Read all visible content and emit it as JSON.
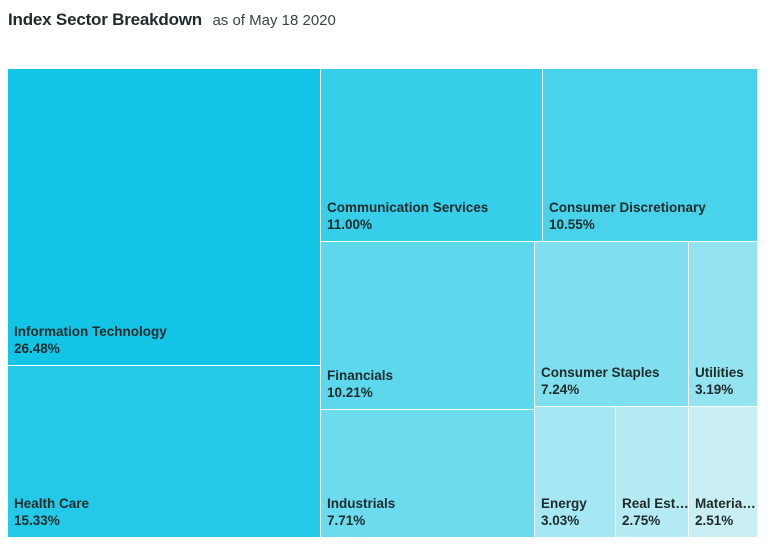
{
  "header": {
    "title": "Index Sector Breakdown",
    "subtitle": "as of May 18 2020"
  },
  "chart_data": {
    "type": "treemap",
    "title": "Index Sector Breakdown",
    "subtitle": "as of May 18 2020",
    "unit": "%",
    "items": [
      {
        "label": "Information Technology",
        "display_label": "Information Technology",
        "value": 26.48,
        "display_value": "26.48%",
        "color": "#12c4e5"
      },
      {
        "label": "Health Care",
        "display_label": "Health Care",
        "value": 15.33,
        "display_value": "15.33%",
        "color": "#24c9e8"
      },
      {
        "label": "Communication Services",
        "display_label": "Communication Services",
        "value": 11.0,
        "display_value": "11.00%",
        "color": "#36cee9"
      },
      {
        "label": "Consumer Discretionary",
        "display_label": "Consumer Discretionary",
        "value": 10.55,
        "display_value": "10.55%",
        "color": "#48d3eb"
      },
      {
        "label": "Financials",
        "display_label": "Financials",
        "value": 10.21,
        "display_value": "10.21%",
        "color": "#5cd7ec"
      },
      {
        "label": "Industrials",
        "display_label": "Industrials",
        "value": 7.71,
        "display_value": "7.71%",
        "color": "#6ddbee"
      },
      {
        "label": "Consumer Staples",
        "display_label": "Consumer Staples",
        "value": 7.24,
        "display_value": "7.24%",
        "color": "#80dfef"
      },
      {
        "label": "Utilities",
        "display_label": "Utilities",
        "value": 3.19,
        "display_value": "3.19%",
        "color": "#93e3f1"
      },
      {
        "label": "Energy",
        "display_label": "Energy",
        "value": 3.03,
        "display_value": "3.03%",
        "color": "#a5e7f3"
      },
      {
        "label": "Real Estate",
        "display_label": "Real Est…",
        "value": 2.75,
        "display_value": "2.75%",
        "color": "#b7ebf4"
      },
      {
        "label": "Materials",
        "display_label": "Materia…",
        "value": 2.51,
        "display_value": "2.51%",
        "color": "#c9eff5"
      }
    ]
  }
}
